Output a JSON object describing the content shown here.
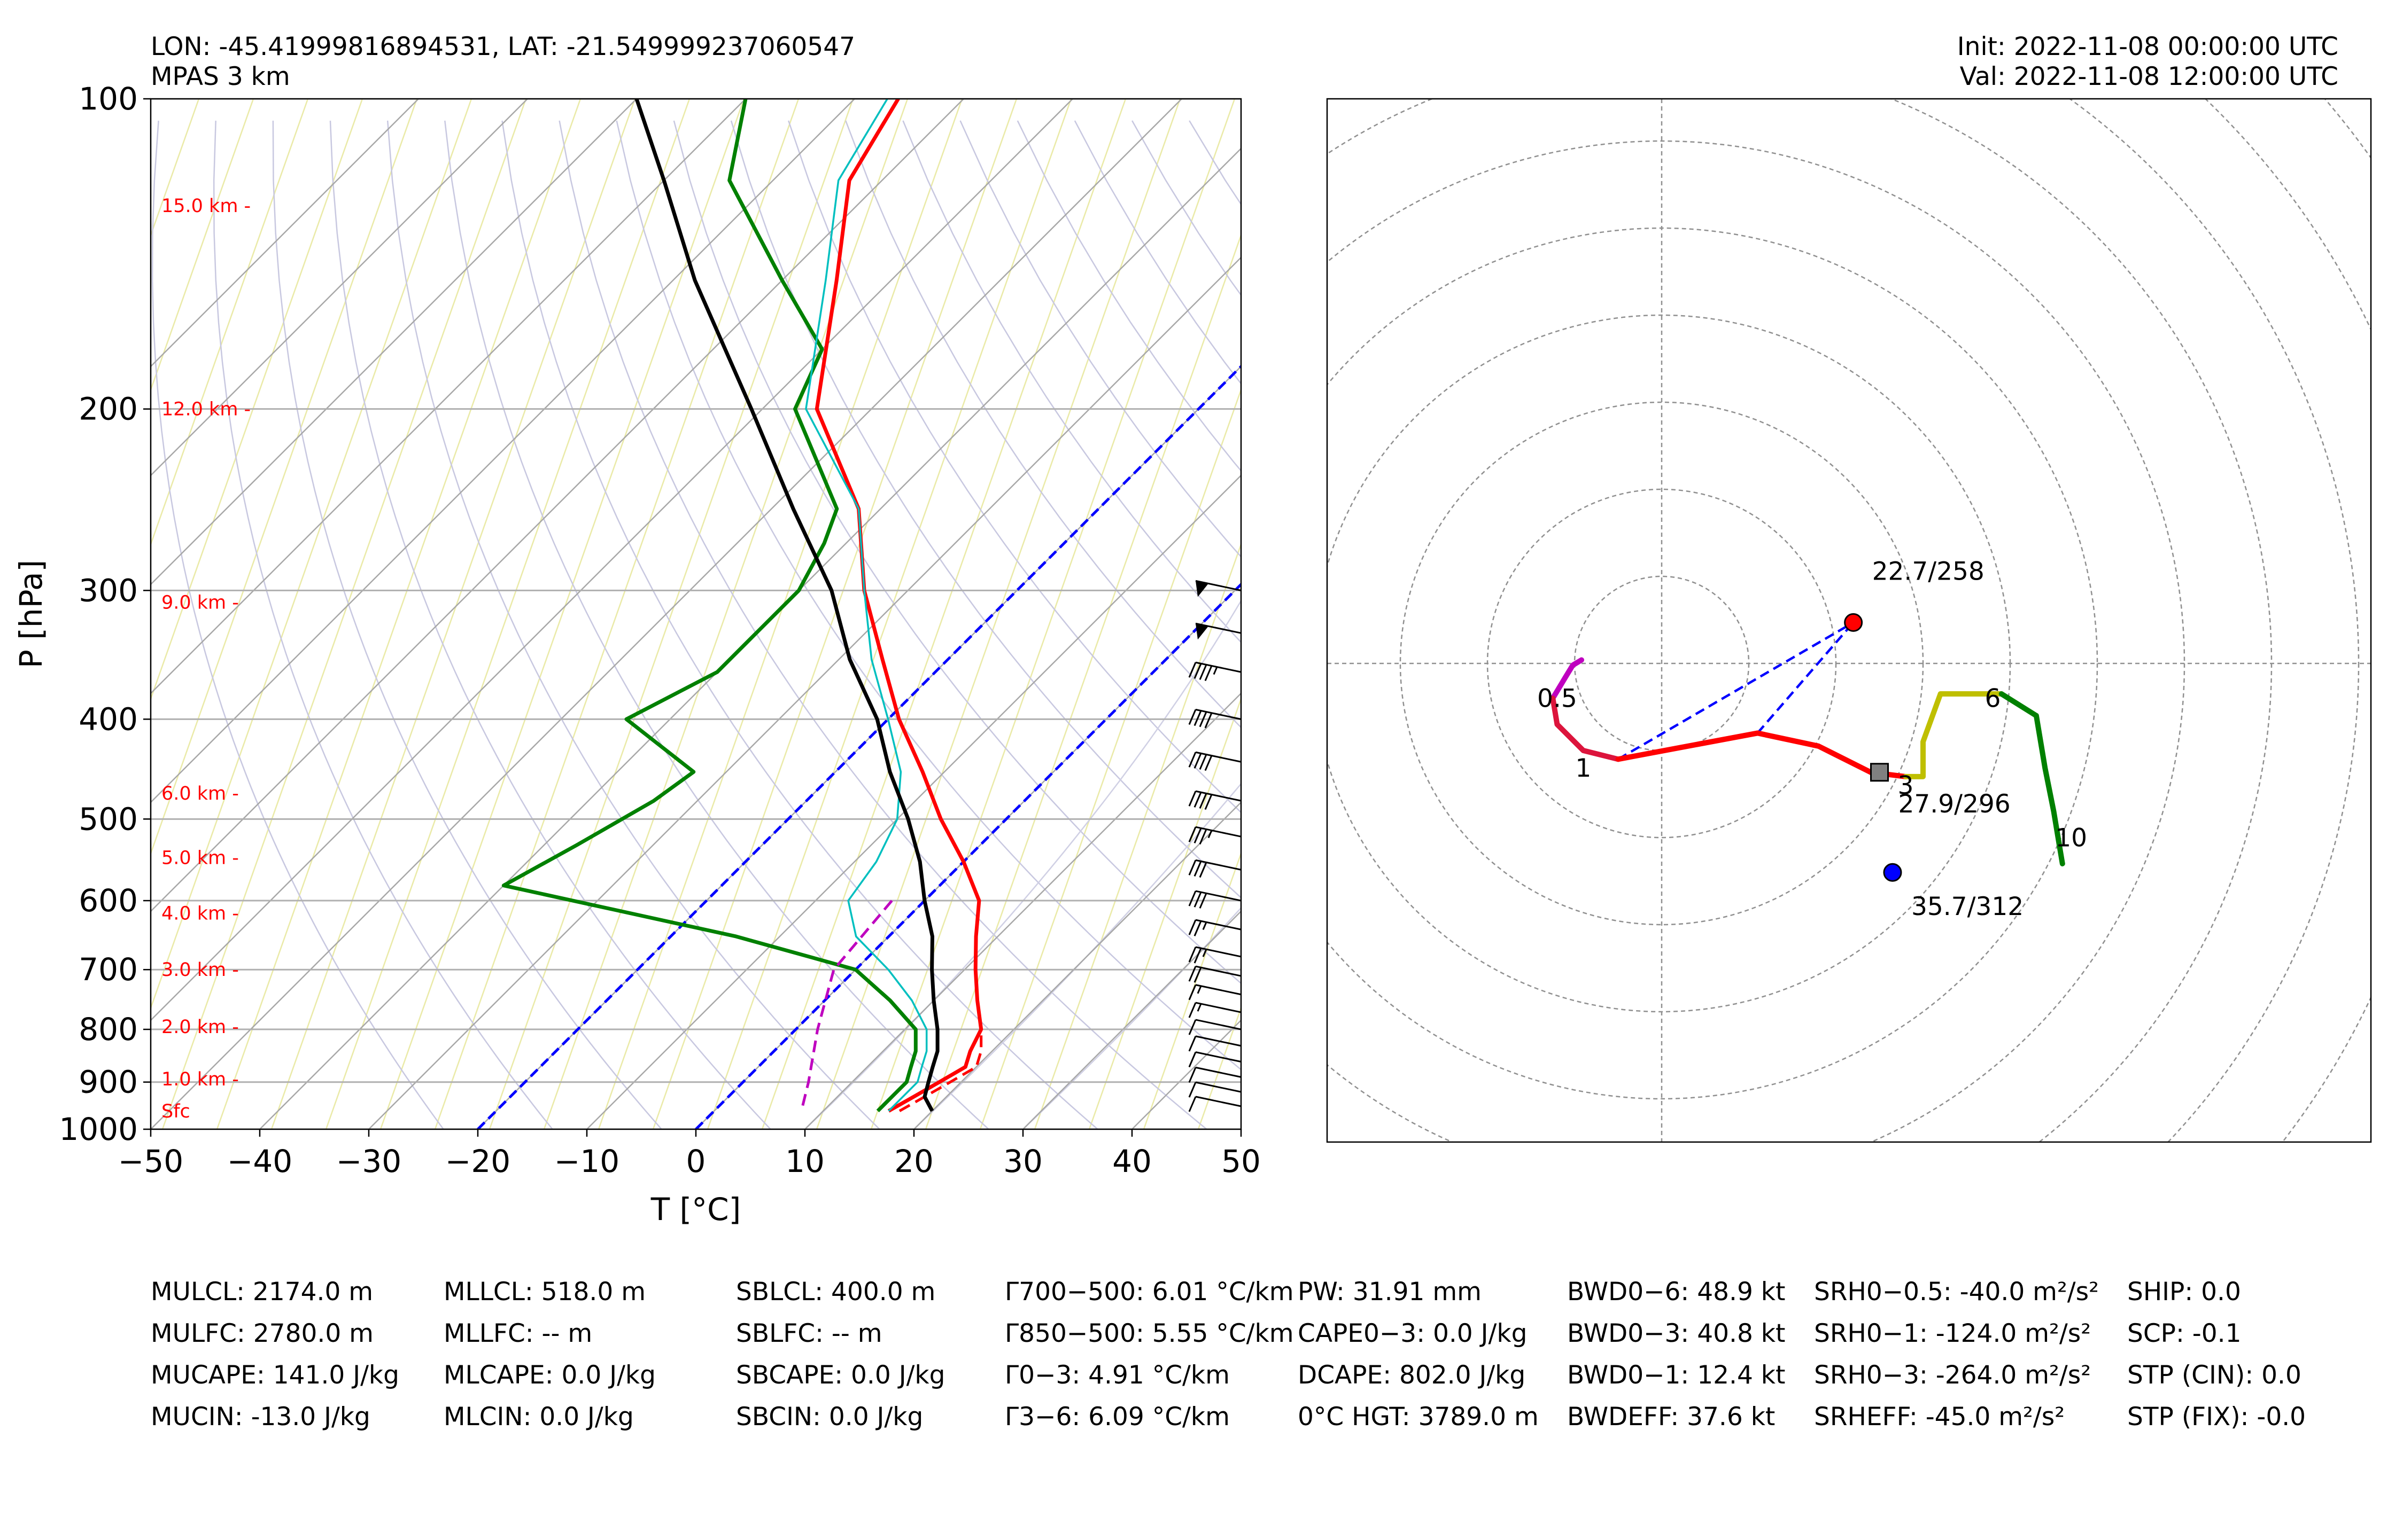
{
  "header": {
    "location": "LON: -45.41999816894531, LAT: -21.549999237060547",
    "model": "MPAS 3 km",
    "init": "Init: 2022-11-08 00:00:00 UTC",
    "valid": "Val: 2022-11-08 12:00:00 UTC"
  },
  "chart_data": [
    {
      "type": "skewt",
      "xlabel": "T [°C]",
      "ylabel": "P [hPa]",
      "xlim": [
        -50,
        50
      ],
      "ylim": [
        1000,
        100
      ],
      "y_scale": "log",
      "xticks": [
        -50,
        -40,
        -30,
        -20,
        -10,
        0,
        10,
        20,
        30,
        40,
        50
      ],
      "yticks": [
        100,
        200,
        300,
        400,
        500,
        600,
        700,
        800,
        900,
        1000
      ],
      "grid": true,
      "height_labels": [
        {
          "text": "15.0 km -",
          "p": 127
        },
        {
          "text": "12.0 km -",
          "p": 200
        },
        {
          "text": "9.0 km -",
          "p": 308
        },
        {
          "text": "6.0 km -",
          "p": 472
        },
        {
          "text": "5.0 km -",
          "p": 545
        },
        {
          "text": "4.0 km -",
          "p": 617
        },
        {
          "text": "3.0 km -",
          "p": 700
        },
        {
          "text": "2.0 km -",
          "p": 795
        },
        {
          "text": "1.0 km -",
          "p": 894
        },
        {
          "text": "Sfc",
          "p": 960
        }
      ],
      "series": [
        {
          "id": "temperature",
          "color": "#ff0000",
          "points": [
            [
              16,
              960
            ],
            [
              17,
              930
            ],
            [
              18,
              900
            ],
            [
              19,
              870
            ],
            [
              18,
              840
            ],
            [
              17,
              800
            ],
            [
              14,
              750
            ],
            [
              11,
              700
            ],
            [
              8,
              650
            ],
            [
              5,
              600
            ],
            [
              0,
              550
            ],
            [
              -6,
              500
            ],
            [
              -12,
              450
            ],
            [
              -19,
              400
            ],
            [
              -26,
              350
            ],
            [
              -34,
              300
            ],
            [
              -42,
              250
            ],
            [
              -55,
              200
            ],
            [
              -65,
              150
            ],
            [
              -73,
              120
            ],
            [
              -76,
              100
            ]
          ]
        },
        {
          "id": "virtual-temperature",
          "color": "#ff0000",
          "dashed": true,
          "points": [
            [
              17,
              960
            ],
            [
              18,
              930
            ],
            [
              19,
              900
            ],
            [
              20,
              870
            ],
            [
              19,
              840
            ],
            [
              17,
              800
            ],
            [
              14,
              750
            ],
            [
              11,
              700
            ],
            [
              8,
              650
            ],
            [
              5,
              600
            ],
            [
              0,
              550
            ],
            [
              -6,
              500
            ]
          ]
        },
        {
          "id": "dewpoint",
          "color": "#008000",
          "points": [
            [
              15,
              960
            ],
            [
              15,
              930
            ],
            [
              15,
              900
            ],
            [
              14,
              870
            ],
            [
              13,
              840
            ],
            [
              11,
              800
            ],
            [
              6,
              750
            ],
            [
              0,
              700
            ],
            [
              -14,
              650
            ],
            [
              -40,
              580
            ],
            [
              -37,
              530
            ],
            [
              -34,
              480
            ],
            [
              -33,
              450
            ],
            [
              -44,
              400
            ],
            [
              -40,
              360
            ],
            [
              -40,
              330
            ],
            [
              -40,
              300
            ],
            [
              -42,
              270
            ],
            [
              -44,
              250
            ],
            [
              -57,
              200
            ],
            [
              -60,
              175
            ],
            [
              -70,
              150
            ],
            [
              -84,
              120
            ],
            [
              -90,
              100
            ]
          ]
        },
        {
          "id": "wetbulb",
          "color": "#00bfbf",
          "points": [
            [
              16,
              960
            ],
            [
              16,
              930
            ],
            [
              16,
              900
            ],
            [
              15,
              870
            ],
            [
              14,
              840
            ],
            [
              12,
              800
            ],
            [
              8,
              750
            ],
            [
              3,
              700
            ],
            [
              -3,
              650
            ],
            [
              -7,
              600
            ],
            [
              -8,
              550
            ],
            [
              -10,
              500
            ],
            [
              -14,
              450
            ],
            [
              -20,
              400
            ],
            [
              -27,
              350
            ],
            [
              -34,
              300
            ],
            [
              -42,
              250
            ],
            [
              -56,
              200
            ],
            [
              -66,
              150
            ],
            [
              -74,
              120
            ],
            [
              -77,
              100
            ]
          ]
        },
        {
          "id": "parcel-profile",
          "color": "#000000",
          "points": [
            [
              20,
              960
            ],
            [
              18,
              930
            ],
            [
              17,
              900
            ],
            [
              16,
              870
            ],
            [
              15,
              840
            ],
            [
              13,
              800
            ],
            [
              10,
              750
            ],
            [
              7,
              700
            ],
            [
              4,
              650
            ],
            [
              0,
              600
            ],
            [
              -4,
              550
            ],
            [
              -9,
              500
            ],
            [
              -15,
              450
            ],
            [
              -21,
              400
            ],
            [
              -29,
              350
            ],
            [
              -37,
              300
            ],
            [
              -48,
              250
            ],
            [
              -61,
              200
            ],
            [
              -78,
              150
            ],
            [
              -90,
              120
            ],
            [
              -100,
              100
            ]
          ]
        },
        {
          "id": "downdraft-parcel",
          "color": "#bf00bf",
          "dashed": true,
          "points": [
            [
              -3,
              600
            ],
            [
              -2,
              700
            ],
            [
              2,
              800
            ],
            [
              6,
              900
            ],
            [
              8,
              960
            ]
          ]
        }
      ],
      "isotherms_highlight": [
        {
          "t": -20,
          "color": "#0000ff"
        },
        {
          "t": 0,
          "color": "#0000ff"
        }
      ],
      "wind_barbs_kt": [
        {
          "p": 300,
          "speed": 50
        },
        {
          "p": 330,
          "speed": 50
        },
        {
          "p": 360,
          "speed": 45
        },
        {
          "p": 400,
          "speed": 40
        },
        {
          "p": 440,
          "speed": 40
        },
        {
          "p": 480,
          "speed": 40
        },
        {
          "p": 520,
          "speed": 35
        },
        {
          "p": 560,
          "speed": 30
        },
        {
          "p": 600,
          "speed": 30
        },
        {
          "p": 640,
          "speed": 25
        },
        {
          "p": 680,
          "speed": 25
        },
        {
          "p": 710,
          "speed": 20
        },
        {
          "p": 740,
          "speed": 15
        },
        {
          "p": 770,
          "speed": 15
        },
        {
          "p": 800,
          "speed": 10
        },
        {
          "p": 830,
          "speed": 10
        },
        {
          "p": 860,
          "speed": 10
        },
        {
          "p": 890,
          "speed": 10
        },
        {
          "p": 920,
          "speed": 10
        },
        {
          "p": 950,
          "speed": 10
        }
      ]
    },
    {
      "type": "hodograph",
      "rings": 6,
      "segments": [
        {
          "color": "#bf00bf",
          "points": [
            [
              -9.2,
              0.4
            ],
            [
              -10.2,
              -0.2
            ],
            [
              -11,
              -1.5
            ],
            [
              -12.5,
              -4
            ]
          ]
        },
        {
          "color": "#dc143c",
          "points": [
            [
              -12.5,
              -4
            ],
            [
              -12,
              -7
            ],
            [
              -9,
              -10
            ],
            [
              -5,
              -11
            ]
          ]
        },
        {
          "color": "#ff0000",
          "points": [
            [
              -5,
              -11
            ],
            [
              11,
              -8
            ],
            [
              18,
              -9.5
            ],
            [
              24,
              -12.5
            ],
            [
              28,
              -13
            ]
          ]
        },
        {
          "color": "#bfbf00",
          "points": [
            [
              28,
              -13
            ],
            [
              30,
              -13
            ],
            [
              30,
              -9
            ],
            [
              32,
              -3.5
            ],
            [
              39,
              -3.5
            ]
          ]
        },
        {
          "color": "#008000",
          "points": [
            [
              39,
              -3.5
            ],
            [
              43,
              -6
            ],
            [
              44,
              -12
            ],
            [
              45,
              -17
            ],
            [
              46,
              -23
            ]
          ]
        }
      ],
      "height_labels": [
        {
          "text": "0.5",
          "u": -12,
          "v": -5
        },
        {
          "text": "1",
          "u": -9,
          "v": -13
        },
        {
          "text": "3",
          "u": 28,
          "v": -15
        },
        {
          "text": "6",
          "u": 38,
          "v": -5
        },
        {
          "text": "10",
          "u": 47,
          "v": -21
        }
      ],
      "storm_motion": [
        {
          "id": "right-mover",
          "label": "22.7/258",
          "u": 22,
          "v": 4.7,
          "color": "#ff0000"
        },
        {
          "id": "bunkers-left",
          "label": "35.7/312",
          "u": 26.5,
          "v": -24,
          "color": "#0000ff"
        },
        {
          "id": "mean-wind",
          "label": "27.9/296",
          "u": 25,
          "v": -12.5,
          "color": "#808080"
        }
      ]
    }
  ],
  "stats": [
    [
      "MULCL: 2174.0 m",
      "MULFC: 2780.0 m",
      "MUCAPE: 141.0 J/kg",
      "MUCIN: -13.0 J/kg"
    ],
    [
      "MLLCL: 518.0 m",
      "MLLFC: -- m",
      "MLCAPE: 0.0 J/kg",
      "MLCIN: 0.0 J/kg"
    ],
    [
      "SBLCL: 400.0 m",
      "SBLFC: -- m",
      "SBCAPE: 0.0 J/kg",
      "SBCIN: 0.0 J/kg"
    ],
    [
      "Γ700−500: 6.01 °C/km",
      "Γ850−500: 5.55 °C/km",
      "Γ0−3: 4.91 °C/km",
      "Γ3−6: 6.09 °C/km"
    ],
    [
      "PW: 31.91 mm",
      "CAPE0−3: 0.0 J/kg",
      "DCAPE: 802.0 J/kg",
      "0°C HGT: 3789.0 m"
    ],
    [
      "BWD0−6: 48.9 kt",
      "BWD0−3: 40.8 kt",
      "BWD0−1: 12.4 kt",
      "BWDEFF: 37.6 kt"
    ],
    [
      "SRH0−0.5: -40.0 m²/s²",
      "SRH0−1: -124.0 m²/s²",
      "SRH0−3: -264.0 m²/s²",
      "SRHEFF: -45.0 m²/s²"
    ],
    [
      "SHIP: 0.0",
      "SCP: -0.1",
      "STP (CIN): 0.0",
      "STP (FIX): -0.0"
    ]
  ]
}
